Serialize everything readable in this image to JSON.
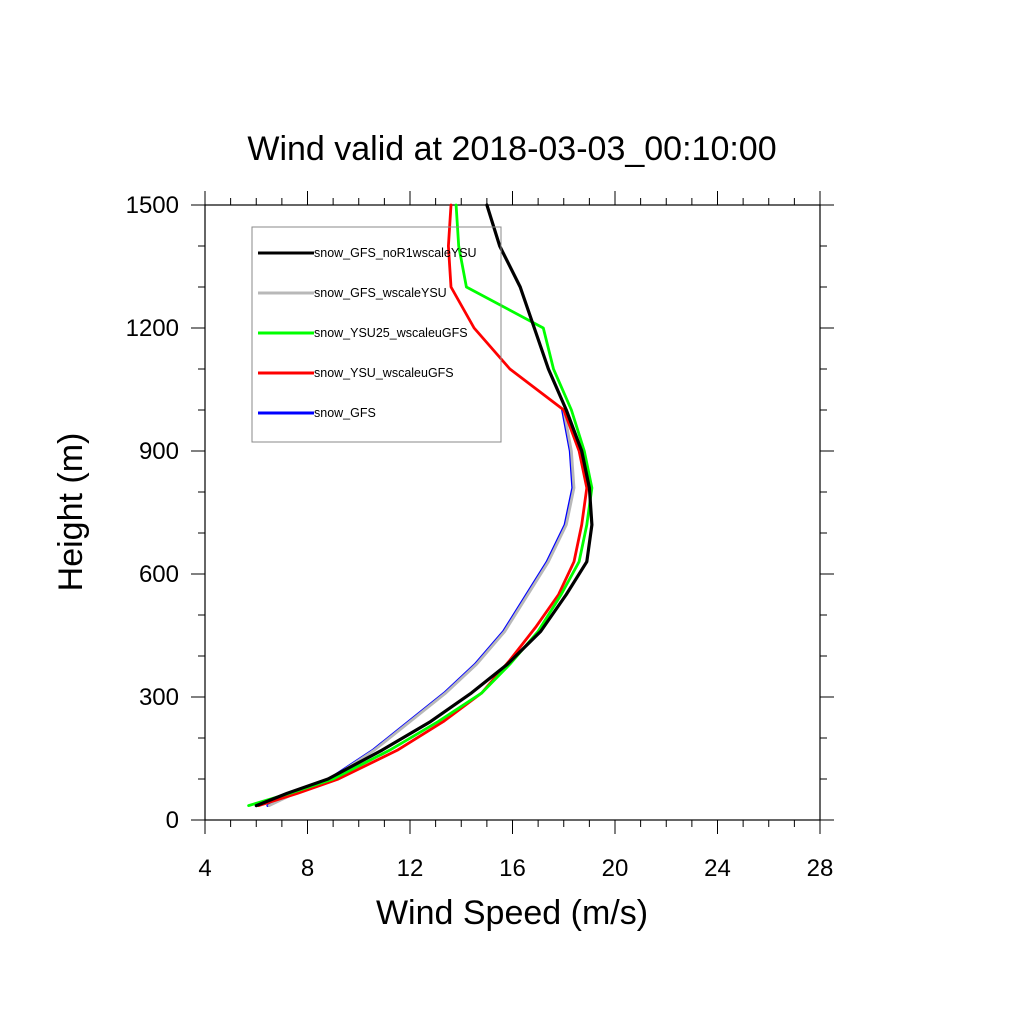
{
  "chart_data": {
    "type": "line",
    "title": "Wind valid at 2018-03-03_00:10:00",
    "xlabel": "Wind Speed (m/s)",
    "ylabel": "Height (m)",
    "xlim": [
      4,
      28
    ],
    "ylim": [
      0,
      1500
    ],
    "xticks": [
      "4",
      "8",
      "12",
      "16",
      "20",
      "24",
      "28"
    ],
    "yticks": [
      "0",
      "300",
      "600",
      "900",
      "1200",
      "1500"
    ],
    "grid": false,
    "legend_position": "top-left",
    "series": [
      {
        "name": "snow_GFS_noR1wscaleYSU",
        "color": "#000000",
        "x": [
          6.0,
          7.2,
          8.8,
          10.9,
          12.8,
          14.4,
          15.8,
          17.1,
          18.1,
          18.9,
          19.1,
          19.0,
          18.7,
          18.1,
          17.4,
          16.3,
          15.5,
          15.0
        ],
        "y": [
          35,
          65,
          100,
          170,
          240,
          310,
          380,
          460,
          550,
          630,
          720,
          810,
          900,
          1000,
          1100,
          1300,
          1400,
          1500
        ]
      },
      {
        "name": "snow_GFS_wscaleYSU",
        "color": "#b8b8b8",
        "x": [
          6.5,
          7.5,
          8.9,
          10.6,
          12.0,
          13.4,
          14.6,
          15.7,
          16.6,
          17.4,
          18.1,
          18.4,
          18.3,
          18.0
        ],
        "y": [
          35,
          65,
          100,
          170,
          240,
          310,
          380,
          460,
          550,
          630,
          720,
          810,
          900,
          1000
        ]
      },
      {
        "name": "snow_YSU25_wscaleuGFS",
        "color": "#00ff00",
        "x": [
          5.7,
          7.3,
          9.0,
          11.2,
          13.1,
          14.8,
          15.9,
          17.0,
          17.9,
          18.6,
          18.9,
          19.1,
          18.8,
          18.3,
          17.6,
          17.2,
          14.2,
          13.9,
          13.8
        ],
        "y": [
          35,
          65,
          100,
          170,
          240,
          310,
          380,
          460,
          550,
          630,
          720,
          810,
          900,
          1000,
          1100,
          1200,
          1300,
          1400,
          1500
        ]
      },
      {
        "name": "snow_YSU_wscaleuGFS",
        "color": "#ff0000",
        "x": [
          6.1,
          7.6,
          9.2,
          11.5,
          13.3,
          14.8,
          15.9,
          16.9,
          17.8,
          18.4,
          18.7,
          18.9,
          18.6,
          18.0,
          15.9,
          14.5,
          13.6,
          13.5,
          13.6
        ],
        "y": [
          35,
          65,
          100,
          170,
          240,
          310,
          390,
          470,
          550,
          630,
          720,
          810,
          900,
          1000,
          1100,
          1200,
          1300,
          1400,
          1500
        ]
      },
      {
        "name": "snow_GFS",
        "color": "#0000ff",
        "x": [
          6.45,
          7.45,
          8.85,
          10.55,
          11.95,
          13.35,
          14.55,
          15.65,
          16.55,
          17.35,
          18.05,
          18.35,
          18.25,
          17.95
        ],
        "y": [
          35,
          65,
          100,
          170,
          240,
          310,
          380,
          460,
          550,
          630,
          720,
          810,
          900,
          1000
        ]
      }
    ]
  }
}
